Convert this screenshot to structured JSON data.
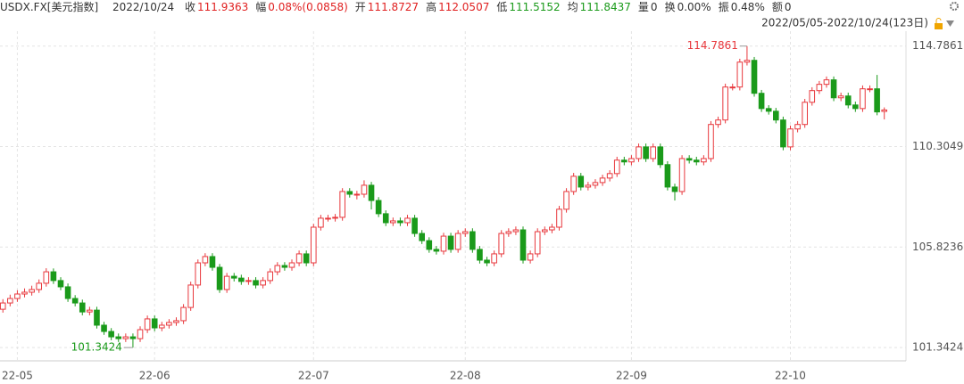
{
  "header": {
    "symbol": "USDX.FX[美元指数]",
    "date": "2022/10/24",
    "fields": [
      {
        "label": "收",
        "value": "111.9363",
        "color": "#e02020"
      },
      {
        "label": "幅",
        "value": "0.08%(0.0858)",
        "color": "#e02020"
      },
      {
        "label": "开",
        "value": "111.8727",
        "color": "#e02020"
      },
      {
        "label": "高",
        "value": "112.0507",
        "color": "#e02020"
      },
      {
        "label": "低",
        "value": "111.5152",
        "color": "#1a9a1a"
      },
      {
        "label": "均",
        "value": "111.8437",
        "color": "#1a9a1a"
      },
      {
        "label": "量",
        "value": "0",
        "color": "#333333"
      },
      {
        "label": "换",
        "value": "0.00%",
        "color": "#333333"
      },
      {
        "label": "振",
        "value": "0.48%",
        "color": "#333333"
      },
      {
        "label": "额",
        "value": "0",
        "color": "#333333"
      }
    ],
    "range": "2022/05/05-2022/10/24(123日)"
  },
  "chart_data": {
    "type": "candlestick",
    "up_color": "#e8383d",
    "down_color": "#1a9a1a",
    "grid": true,
    "opens": [
      103.05,
      103.33,
      103.53,
      103.73,
      103.81,
      103.93,
      104.21,
      104.72,
      104.33,
      104.05,
      103.53,
      103.33,
      102.93,
      103.01,
      102.34,
      102.06,
      101.82,
      101.74,
      101.82,
      101.74,
      102.14,
      102.62,
      102.22,
      102.34,
      102.46,
      102.54,
      103.13,
      104.13,
      105.12,
      105.4,
      104.92,
      103.93,
      104.52,
      104.44,
      104.29,
      104.33,
      104.13,
      104.33,
      104.72,
      105.0,
      104.92,
      105.12,
      105.52,
      105.12,
      106.71,
      107.11,
      107.11,
      107.15,
      108.3,
      108.18,
      108.18,
      108.58,
      107.9,
      107.31,
      106.91,
      106.99,
      106.91,
      107.11,
      106.43,
      106.11,
      105.72,
      105.64,
      106.31,
      105.72,
      106.43,
      106.51,
      105.72,
      105.24,
      105.12,
      105.52,
      106.43,
      106.51,
      106.59,
      105.24,
      105.52,
      106.51,
      106.59,
      106.71,
      107.51,
      108.3,
      108.98,
      108.5,
      108.58,
      108.7,
      108.9,
      109.1,
      109.7,
      109.62,
      109.77,
      110.29,
      109.77,
      110.29,
      109.5,
      108.5,
      108.3,
      109.77,
      109.7,
      109.62,
      109.77,
      111.29,
      111.49,
      112.96,
      112.96,
      114.07,
      114.15,
      112.68,
      112.0,
      111.88,
      111.49,
      110.29,
      111.09,
      111.29,
      112.28,
      112.8,
      113.08,
      113.28,
      112.48,
      112.56,
      112.16,
      112.0,
      112.88,
      112.88,
      111.8727
    ],
    "highs": [
      103.5,
      103.7,
      103.9,
      103.98,
      104.1,
      104.38,
      104.88,
      104.87,
      104.48,
      104.2,
      103.68,
      103.48,
      103.16,
      103.16,
      102.49,
      102.21,
      101.97,
      101.97,
      101.97,
      102.29,
      102.77,
      102.77,
      102.49,
      102.61,
      102.69,
      103.28,
      104.28,
      105.27,
      105.55,
      105.55,
      105.07,
      104.67,
      104.67,
      104.59,
      104.48,
      104.48,
      104.48,
      104.87,
      105.15,
      105.15,
      105.27,
      105.67,
      105.67,
      106.86,
      107.26,
      107.26,
      107.3,
      108.45,
      108.45,
      108.33,
      108.8,
      108.73,
      108.05,
      107.46,
      107.14,
      107.14,
      107.26,
      107.26,
      106.58,
      106.26,
      105.87,
      106.46,
      106.46,
      106.58,
      106.66,
      106.66,
      105.87,
      105.39,
      105.67,
      106.58,
      106.66,
      106.74,
      106.74,
      105.67,
      106.66,
      106.74,
      106.86,
      107.66,
      108.45,
      109.13,
      109.13,
      108.73,
      108.85,
      109.05,
      109.25,
      109.85,
      109.85,
      109.92,
      110.44,
      110.44,
      110.44,
      110.44,
      109.65,
      108.65,
      109.92,
      109.92,
      109.85,
      109.92,
      111.44,
      111.64,
      113.11,
      113.11,
      114.22,
      114.7861,
      114.3,
      112.83,
      112.15,
      112.03,
      111.64,
      111.24,
      111.44,
      112.43,
      112.95,
      113.23,
      113.43,
      113.43,
      112.71,
      112.71,
      112.31,
      113.03,
      113.03,
      113.5,
      112.0507
    ],
    "lows": [
      102.9,
      103.18,
      103.38,
      103.58,
      103.66,
      103.78,
      104.06,
      104.18,
      103.9,
      103.38,
      103.18,
      102.78,
      102.78,
      102.19,
      101.91,
      101.67,
      101.59,
      101.59,
      101.3424,
      101.59,
      101.99,
      102.07,
      102.07,
      102.19,
      102.31,
      102.39,
      102.98,
      103.98,
      104.97,
      104.77,
      103.78,
      103.78,
      104.29,
      104.14,
      104.14,
      103.98,
      103.98,
      104.18,
      104.57,
      104.77,
      104.77,
      104.97,
      104.97,
      104.97,
      106.56,
      106.96,
      106.96,
      107.0,
      108.03,
      107.95,
      108.03,
      107.5,
      107.16,
      106.76,
      106.76,
      106.76,
      106.76,
      106.28,
      105.96,
      105.57,
      105.49,
      105.49,
      105.57,
      105.57,
      106.28,
      105.57,
      105.09,
      104.97,
      104.97,
      105.37,
      106.28,
      106.36,
      105.09,
      105.09,
      105.37,
      106.36,
      106.44,
      106.56,
      107.36,
      108.15,
      108.35,
      108.35,
      108.43,
      108.55,
      108.75,
      108.95,
      109.47,
      109.47,
      109.62,
      109.62,
      109.62,
      109.35,
      108.35,
      107.9,
      108.15,
      109.55,
      109.47,
      109.47,
      109.62,
      111.14,
      111.34,
      112.81,
      112.81,
      113.92,
      112.53,
      111.85,
      111.73,
      111.34,
      110.14,
      110.14,
      110.94,
      111.14,
      112.13,
      112.65,
      112.93,
      112.33,
      112.33,
      112.01,
      111.85,
      111.85,
      112.73,
      111.7,
      111.5152
    ],
    "closes": [
      103.33,
      103.53,
      103.73,
      103.81,
      103.93,
      104.21,
      104.72,
      104.33,
      104.05,
      103.53,
      103.33,
      102.93,
      103.01,
      102.34,
      102.06,
      101.82,
      101.74,
      101.82,
      101.74,
      102.14,
      102.62,
      102.22,
      102.34,
      102.46,
      102.54,
      103.13,
      104.13,
      105.12,
      105.4,
      104.92,
      103.93,
      104.52,
      104.44,
      104.29,
      104.33,
      104.13,
      104.33,
      104.72,
      105.0,
      104.92,
      105.12,
      105.52,
      105.12,
      106.71,
      107.11,
      107.11,
      107.15,
      108.3,
      108.18,
      108.18,
      108.58,
      107.9,
      107.31,
      106.91,
      106.99,
      106.91,
      107.11,
      106.43,
      106.11,
      105.72,
      105.64,
      106.31,
      105.72,
      106.43,
      106.51,
      105.72,
      105.24,
      105.12,
      105.52,
      106.43,
      106.51,
      106.59,
      105.24,
      105.52,
      106.51,
      106.59,
      106.71,
      107.51,
      108.3,
      108.98,
      108.5,
      108.58,
      108.7,
      108.9,
      109.1,
      109.7,
      109.62,
      109.77,
      110.29,
      109.77,
      110.29,
      109.5,
      108.5,
      108.3,
      109.77,
      109.7,
      109.62,
      109.77,
      111.29,
      111.49,
      112.96,
      112.96,
      114.07,
      114.15,
      112.68,
      112.0,
      111.88,
      111.49,
      110.29,
      111.09,
      111.29,
      112.28,
      112.8,
      113.08,
      113.28,
      112.48,
      112.56,
      112.16,
      112.0,
      112.88,
      112.88,
      111.85,
      111.9363
    ],
    "ylim": [
      100.75,
      115.45
    ],
    "yticks": [
      101.3424,
      105.8236,
      110.3049,
      114.7861
    ],
    "xlim": [
      -0.4,
      125
    ],
    "xticks": [
      {
        "value": 2,
        "label": "22-05"
      },
      {
        "value": 21,
        "label": "22-06"
      },
      {
        "value": 43,
        "label": "22-07"
      },
      {
        "value": 64,
        "label": "22-08"
      },
      {
        "value": 87,
        "label": "22-09"
      },
      {
        "value": 109,
        "label": "22-10"
      }
    ],
    "max_index": 103,
    "min_index": 18
  }
}
